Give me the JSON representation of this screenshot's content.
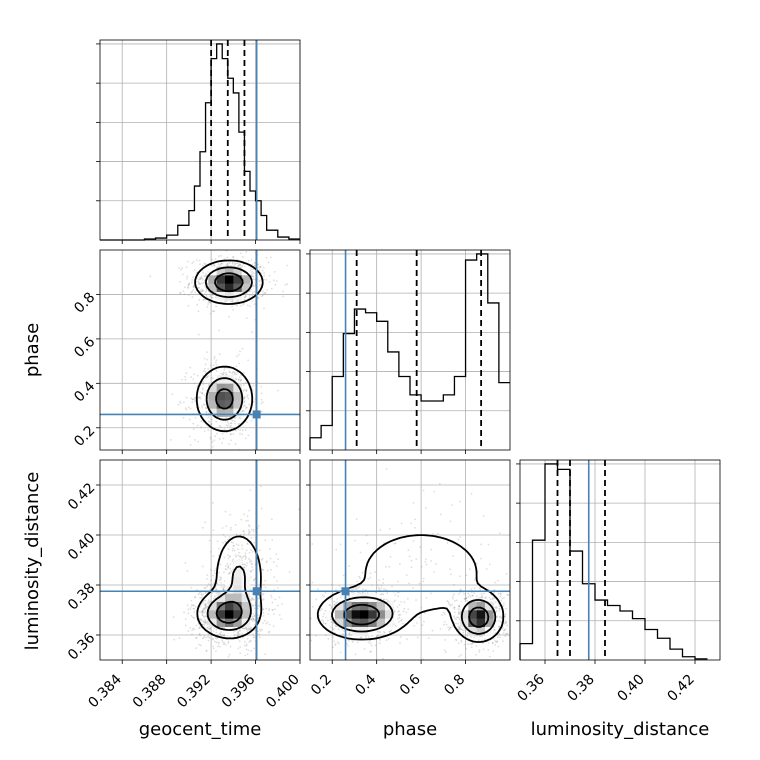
{
  "colors": {
    "truth": "#4682b4",
    "scatter": "#888888",
    "line": "#000000",
    "grid": "#b0b0b0"
  },
  "parameters": [
    {
      "name": "geocent_time",
      "label": "geocent_time",
      "range": [
        0.382,
        0.4
      ],
      "ticks": [
        0.384,
        0.388,
        0.392,
        0.396,
        0.4
      ],
      "tick_labels": [
        "0.384",
        "0.388",
        "0.392",
        "0.396",
        "0.400"
      ],
      "truth": 0.3961
    },
    {
      "name": "phase",
      "label": "phase",
      "range": [
        0.1,
        1.0
      ],
      "ticks": [
        0.2,
        0.4,
        0.6,
        0.8
      ],
      "tick_labels": [
        "0.2",
        "0.4",
        "0.6",
        "0.8"
      ],
      "truth": 0.26
    },
    {
      "name": "luminosity_distance",
      "label": "luminosity_distance",
      "range": [
        0.35,
        0.43
      ],
      "ticks": [
        0.36,
        0.38,
        0.4,
        0.42
      ],
      "tick_labels": [
        "0.36",
        "0.38",
        "0.40",
        "0.42"
      ],
      "truth": 0.3775
    }
  ],
  "chart_data": {
    "type": "corner",
    "grid": true,
    "histograms": [
      {
        "param": "geocent_time",
        "bin_edges": [
          0.382,
          0.383,
          0.384,
          0.385,
          0.386,
          0.387,
          0.388,
          0.389,
          0.39,
          0.3905,
          0.391,
          0.3915,
          0.392,
          0.3925,
          0.393,
          0.3935,
          0.394,
          0.3945,
          0.395,
          0.3955,
          0.396,
          0.3965,
          0.397,
          0.398,
          0.399,
          0.4
        ],
        "counts": [
          0,
          0,
          0,
          0,
          1,
          2,
          5,
          15,
          30,
          55,
          90,
          140,
          185,
          200,
          185,
          165,
          150,
          110,
          70,
          50,
          40,
          25,
          10,
          3,
          1
        ],
        "quantiles": [
          0.392,
          0.3935,
          0.395
        ]
      },
      {
        "param": "phase",
        "bin_edges": [
          0.1,
          0.15,
          0.2,
          0.25,
          0.3,
          0.35,
          0.4,
          0.45,
          0.5,
          0.55,
          0.6,
          0.65,
          0.7,
          0.75,
          0.8,
          0.85,
          0.9,
          0.95,
          1.0
        ],
        "counts": [
          10,
          20,
          60,
          95,
          115,
          112,
          105,
          80,
          60,
          45,
          40,
          40,
          45,
          60,
          155,
          160,
          120,
          55
        ],
        "quantiles": [
          0.31,
          0.58,
          0.87
        ]
      },
      {
        "param": "luminosity_distance",
        "bin_edges": [
          0.35,
          0.355,
          0.36,
          0.365,
          0.37,
          0.375,
          0.38,
          0.385,
          0.39,
          0.395,
          0.4,
          0.405,
          0.41,
          0.415,
          0.42,
          0.425
        ],
        "counts": [
          15,
          110,
          180,
          175,
          100,
          70,
          55,
          50,
          45,
          38,
          28,
          20,
          10,
          3,
          1
        ],
        "quantiles": [
          0.365,
          0.37,
          0.384
        ]
      }
    ],
    "joint": [
      {
        "x": "geocent_time",
        "y": "phase",
        "modes": [
          {
            "x": 0.3936,
            "y": 0.855,
            "sx": 0.0014,
            "sy": 0.045,
            "w": 0.55
          },
          {
            "x": 0.3932,
            "y": 0.33,
            "sx": 0.0012,
            "sy": 0.07,
            "w": 0.45
          }
        ]
      },
      {
        "x": "geocent_time",
        "y": "luminosity_distance",
        "modes": [
          {
            "x": 0.3935,
            "y": 0.3685,
            "sx": 0.0013,
            "sy": 0.0045,
            "w": 0.7
          },
          {
            "x": 0.3945,
            "y": 0.383,
            "sx": 0.0012,
            "sy": 0.01,
            "w": 0.3
          }
        ]
      },
      {
        "x": "phase",
        "y": "luminosity_distance",
        "modes": [
          {
            "x": 0.33,
            "y": 0.368,
            "sx": 0.09,
            "sy": 0.0045,
            "w": 0.45
          },
          {
            "x": 0.86,
            "y": 0.367,
            "sx": 0.05,
            "sy": 0.0045,
            "w": 0.45
          },
          {
            "x": 0.6,
            "y": 0.385,
            "sx": 0.2,
            "sy": 0.012,
            "w": 0.1
          }
        ]
      }
    ]
  }
}
